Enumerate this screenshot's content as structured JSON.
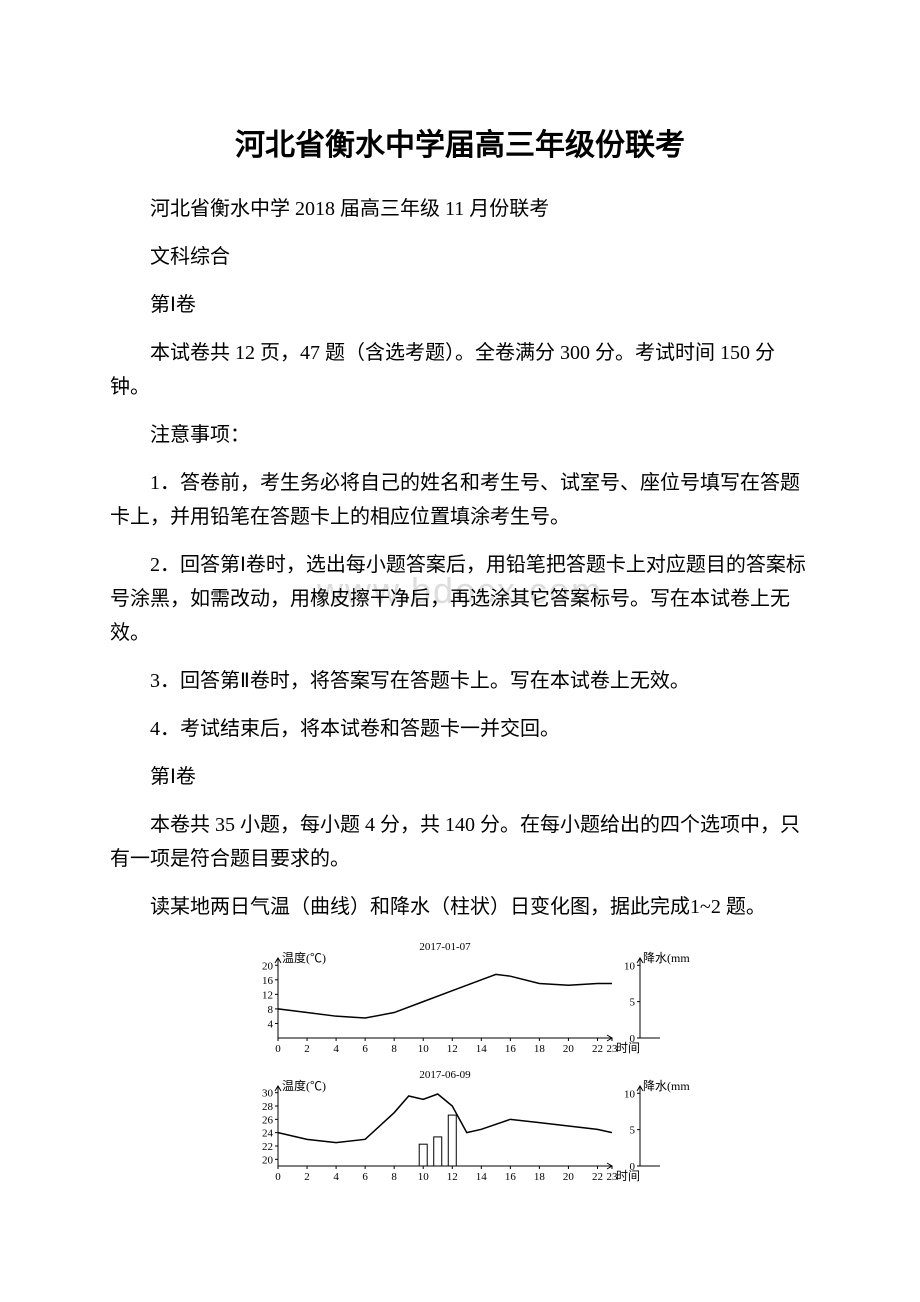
{
  "title": "河北省衡水中学届高三年级份联考",
  "subtitle": "河北省衡水中学 2018 届高三年级 11 月份联考",
  "subject": "文科综合",
  "section1_label": "第Ⅰ卷",
  "overview": "本试卷共 12 页，47 题（含选考题）。全卷满分 300 分。考试时间 150 分钟。",
  "notice_heading": "注意事项：",
  "notice1": "1．答卷前，考生务必将自己的姓名和考生号、试室号、座位号填写在答题卡上，并用铅笔在答题卡上的相应位置填涂考生号。",
  "notice2": "2．回答第Ⅰ卷时，选出每小题答案后，用铅笔把答题卡上对应题目的答案标号涂黑，如需改动，用橡皮擦干净后，再选涂其它答案标号。写在本试卷上无效。",
  "notice3": "3．回答第Ⅱ卷时，将答案写在答题卡上。写在本试卷上无效。",
  "notice4": "4．考试结束后，将本试卷和答题卡一并交回。",
  "section1_label_2": "第Ⅰ卷",
  "section1_desc": "本卷共 35 小题，每小题 4 分，共 140 分。在每小题给出的四个选项中，只有一项是符合题目要求的。",
  "q_intro": "读某地两日气温（曲线）和降水（柱状）日变化图，据此完成1~2 题。",
  "watermark": "www.bdocx.com",
  "chart1": {
    "type": "line+bar",
    "date_title": "2017-01-07",
    "left_axis_label": "温度(℃)",
    "right_axis_label": "降水(mm)",
    "x_label": "时间",
    "left_ticks": [
      4,
      8,
      12,
      16,
      20
    ],
    "right_ticks": [
      0,
      5,
      10
    ],
    "x_ticks": [
      0,
      2,
      4,
      6,
      8,
      10,
      12,
      14,
      16,
      18,
      20,
      22,
      23
    ],
    "temp_series": [
      {
        "x": 0,
        "y": 8
      },
      {
        "x": 2,
        "y": 7
      },
      {
        "x": 4,
        "y": 6
      },
      {
        "x": 6,
        "y": 5.5
      },
      {
        "x": 8,
        "y": 7
      },
      {
        "x": 10,
        "y": 10
      },
      {
        "x": 12,
        "y": 13
      },
      {
        "x": 14,
        "y": 16
      },
      {
        "x": 15,
        "y": 17.5
      },
      {
        "x": 16,
        "y": 17
      },
      {
        "x": 18,
        "y": 15
      },
      {
        "x": 20,
        "y": 14.5
      },
      {
        "x": 22,
        "y": 15
      },
      {
        "x": 23,
        "y": 15
      }
    ],
    "precip_series": [],
    "left_ylim": [
      0,
      22
    ],
    "right_ylim": [
      0,
      11
    ],
    "colors": {
      "axis": "#000000",
      "curve": "#000000",
      "bg": "#ffffff"
    }
  },
  "chart2": {
    "type": "line+bar",
    "date_title": "2017-06-09",
    "left_axis_label": "温度(℃)",
    "right_axis_label": "降水(mm)",
    "x_label": "时间",
    "left_ticks": [
      20,
      22,
      24,
      26,
      28,
      30
    ],
    "right_ticks": [
      0,
      5,
      10
    ],
    "x_ticks": [
      0,
      2,
      4,
      6,
      8,
      10,
      12,
      14,
      16,
      18,
      20,
      22,
      23
    ],
    "temp_series": [
      {
        "x": 0,
        "y": 24
      },
      {
        "x": 2,
        "y": 23
      },
      {
        "x": 4,
        "y": 22.5
      },
      {
        "x": 6,
        "y": 23
      },
      {
        "x": 8,
        "y": 27
      },
      {
        "x": 9,
        "y": 29.5
      },
      {
        "x": 10,
        "y": 29
      },
      {
        "x": 11,
        "y": 29.8
      },
      {
        "x": 12,
        "y": 28
      },
      {
        "x": 13,
        "y": 24
      },
      {
        "x": 14,
        "y": 24.5
      },
      {
        "x": 16,
        "y": 26
      },
      {
        "x": 18,
        "y": 25.5
      },
      {
        "x": 20,
        "y": 25
      },
      {
        "x": 22,
        "y": 24.5
      },
      {
        "x": 23,
        "y": 24
      }
    ],
    "precip_series": [
      {
        "x": 10,
        "v": 3
      },
      {
        "x": 11,
        "v": 4
      },
      {
        "x": 12,
        "v": 7
      }
    ],
    "left_ylim": [
      19,
      31
    ],
    "right_ylim": [
      0,
      11
    ],
    "colors": {
      "axis": "#000000",
      "curve": "#000000",
      "bg": "#ffffff"
    }
  }
}
